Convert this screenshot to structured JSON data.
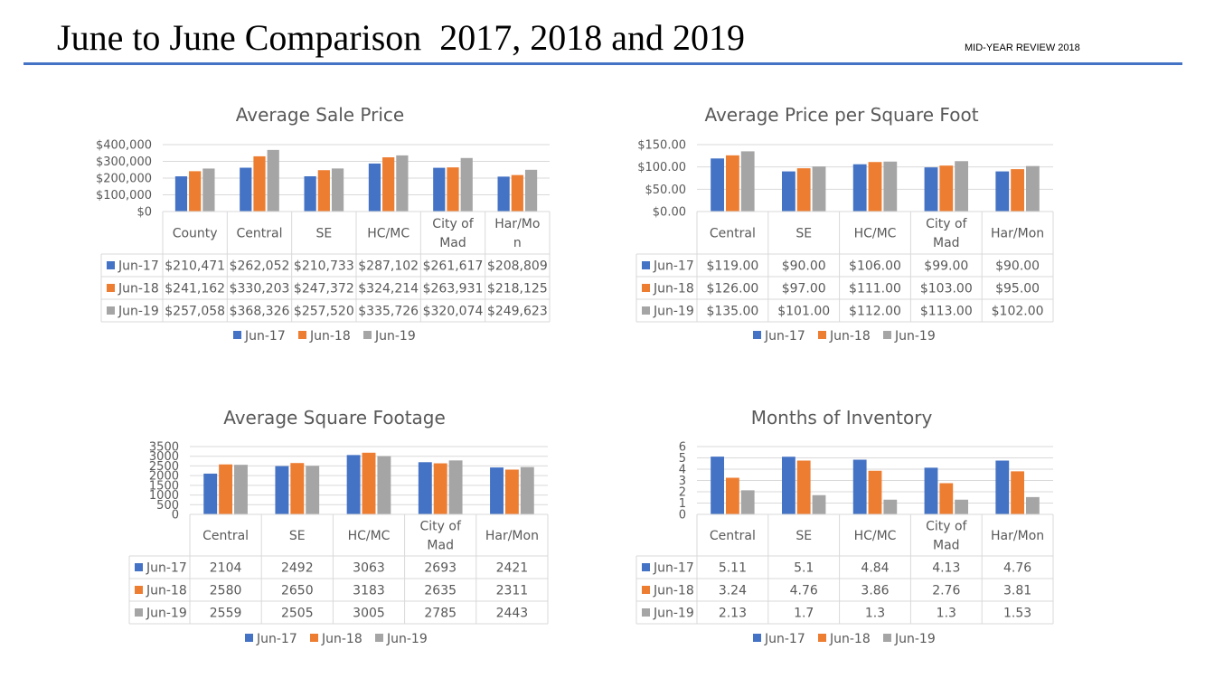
{
  "header": {
    "title": "June to June Comparison  2017, 2018 and 2019",
    "subtitle": "MID-YEAR REVIEW 2018"
  },
  "colors": {
    "Jun-17": "#4472c4",
    "Jun-18": "#ed7d31",
    "Jun-19": "#a5a5a5"
  },
  "chart_data": [
    {
      "type": "bar",
      "title": "Average Sale Price",
      "categories": [
        "County",
        "Central",
        "SE",
        "HC/MC",
        "City of Mad",
        "Har/Mon"
      ],
      "category_lines": [
        [
          "County"
        ],
        [
          "Central"
        ],
        [
          "SE"
        ],
        [
          "HC/MC"
        ],
        [
          "City of",
          "Mad"
        ],
        [
          "Har/Mo",
          "n"
        ]
      ],
      "series": [
        {
          "name": "Jun-17",
          "values": [
            210471,
            262052,
            210733,
            287102,
            261617,
            208809
          ],
          "labels": [
            "$210,471",
            "$262,052",
            "$210,733",
            "$287,102",
            "$261,617",
            "$208,809"
          ]
        },
        {
          "name": "Jun-18",
          "values": [
            241162,
            330203,
            247372,
            324214,
            263931,
            218125
          ],
          "labels": [
            "$241,162",
            "$330,203",
            "$247,372",
            "$324,214",
            "$263,931",
            "$218,125"
          ]
        },
        {
          "name": "Jun-19",
          "values": [
            257058,
            368326,
            257520,
            335726,
            320074,
            249623
          ],
          "labels": [
            "$257,058",
            "$368,326",
            "$257,520",
            "$335,726",
            "$320,074",
            "$249,623"
          ]
        }
      ],
      "ylim": [
        0,
        400000
      ],
      "yticks": [
        0,
        100000,
        200000,
        300000,
        400000
      ],
      "ytick_labels": [
        "$0",
        "$100,000",
        "$200,000",
        "$300,000",
        "$400,000"
      ],
      "grid": true,
      "legend": "bottom",
      "data_table": true
    },
    {
      "type": "bar",
      "title": "Average Price per Square Foot",
      "categories": [
        "Central",
        "SE",
        "HC/MC",
        "City of Mad",
        "Har/Mon"
      ],
      "category_lines": [
        [
          "Central"
        ],
        [
          "SE"
        ],
        [
          "HC/MC"
        ],
        [
          "City of",
          "Mad"
        ],
        [
          "Har/Mon"
        ]
      ],
      "series": [
        {
          "name": "Jun-17",
          "values": [
            119,
            90,
            106,
            99,
            90
          ],
          "labels": [
            "$119.00",
            "$90.00",
            "$106.00",
            "$99.00",
            "$90.00"
          ]
        },
        {
          "name": "Jun-18",
          "values": [
            126,
            97,
            111,
            103,
            95
          ],
          "labels": [
            "$126.00",
            "$97.00",
            "$111.00",
            "$103.00",
            "$95.00"
          ]
        },
        {
          "name": "Jun-19",
          "values": [
            135,
            101,
            112,
            113,
            102
          ],
          "labels": [
            "$135.00",
            "$101.00",
            "$112.00",
            "$113.00",
            "$102.00"
          ]
        }
      ],
      "ylim": [
        0,
        150
      ],
      "yticks": [
        0,
        50,
        100,
        150
      ],
      "ytick_labels": [
        "$0.00",
        "$50.00",
        "$100.00",
        "$150.00"
      ],
      "grid": true,
      "legend": "bottom",
      "data_table": true
    },
    {
      "type": "bar",
      "title": "Average Square Footage",
      "categories": [
        "Central",
        "SE",
        "HC/MC",
        "City of Mad",
        "Har/Mon"
      ],
      "category_lines": [
        [
          "Central"
        ],
        [
          "SE"
        ],
        [
          "HC/MC"
        ],
        [
          "City of",
          "Mad"
        ],
        [
          "Har/Mon"
        ]
      ],
      "series": [
        {
          "name": "Jun-17",
          "values": [
            2104,
            2492,
            3063,
            2693,
            2421
          ],
          "labels": [
            "2104",
            "2492",
            "3063",
            "2693",
            "2421"
          ]
        },
        {
          "name": "Jun-18",
          "values": [
            2580,
            2650,
            3183,
            2635,
            2311
          ],
          "labels": [
            "2580",
            "2650",
            "3183",
            "2635",
            "2311"
          ]
        },
        {
          "name": "Jun-19",
          "values": [
            2559,
            2505,
            3005,
            2785,
            2443
          ],
          "labels": [
            "2559",
            "2505",
            "3005",
            "2785",
            "2443"
          ]
        }
      ],
      "ylim": [
        0,
        3500
      ],
      "yticks": [
        0,
        500,
        1000,
        1500,
        2000,
        2500,
        3000,
        3500
      ],
      "ytick_labels": [
        "0",
        "500",
        "1000",
        "1500",
        "2000",
        "2500",
        "3000",
        "3500"
      ],
      "grid": true,
      "legend": "bottom",
      "data_table": true
    },
    {
      "type": "bar",
      "title": "Months of Inventory",
      "categories": [
        "Central",
        "SE",
        "HC/MC",
        "City of Mad",
        "Har/Mon"
      ],
      "category_lines": [
        [
          "Central"
        ],
        [
          "SE"
        ],
        [
          "HC/MC"
        ],
        [
          "City of",
          "Mad"
        ],
        [
          "Har/Mon"
        ]
      ],
      "series": [
        {
          "name": "Jun-17",
          "values": [
            5.11,
            5.1,
            4.84,
            4.13,
            4.76
          ],
          "labels": [
            "5.11",
            "5.1",
            "4.84",
            "4.13",
            "4.76"
          ]
        },
        {
          "name": "Jun-18",
          "values": [
            3.24,
            4.76,
            3.86,
            2.76,
            3.81
          ],
          "labels": [
            "3.24",
            "4.76",
            "3.86",
            "2.76",
            "3.81"
          ]
        },
        {
          "name": "Jun-19",
          "values": [
            2.13,
            1.7,
            1.3,
            1.3,
            1.53
          ],
          "labels": [
            "2.13",
            "1.7",
            "1.3",
            "1.3",
            "1.53"
          ]
        }
      ],
      "ylim": [
        0,
        6
      ],
      "yticks": [
        0,
        1,
        2,
        3,
        4,
        5,
        6
      ],
      "ytick_labels": [
        "0",
        "1",
        "2",
        "3",
        "4",
        "5",
        "6"
      ],
      "grid": true,
      "legend": "bottom",
      "data_table": true
    }
  ]
}
